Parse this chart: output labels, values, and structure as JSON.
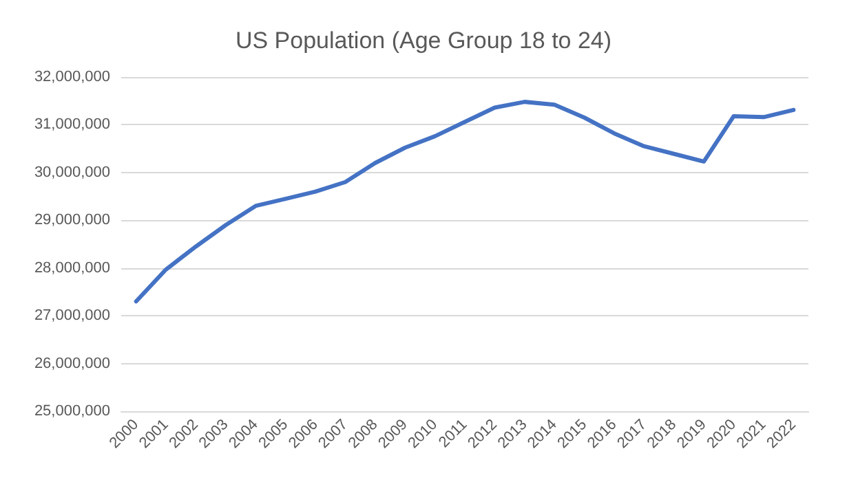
{
  "chart_data": {
    "type": "line",
    "title": "US Population (Age Group 18 to 24)",
    "categories": [
      "2000",
      "2001",
      "2002",
      "2003",
      "2004",
      "2005",
      "2006",
      "2007",
      "2008",
      "2009",
      "2010",
      "2011",
      "2012",
      "2013",
      "2014",
      "2015",
      "2016",
      "2017",
      "2018",
      "2019",
      "2020",
      "2021",
      "2022"
    ],
    "series": [
      {
        "color": "#4472c4",
        "values": [
          27300000,
          27970000,
          28450000,
          28900000,
          29300000,
          29450000,
          29600000,
          29800000,
          30200000,
          30520000,
          30760000,
          31060000,
          31360000,
          31480000,
          31420000,
          31150000,
          30820000,
          30550000,
          30390000,
          30230000,
          31180000,
          31160000,
          31310000
        ]
      }
    ],
    "ylim": [
      25000000,
      32000000
    ],
    "yticks": [
      {
        "value": 25000000,
        "label": "25,000,000"
      },
      {
        "value": 26000000,
        "label": "26,000,000"
      },
      {
        "value": 27000000,
        "label": "27,000,000"
      },
      {
        "value": 28000000,
        "label": "28,000,000"
      },
      {
        "value": 29000000,
        "label": "29,000,000"
      },
      {
        "value": 30000000,
        "label": "30,000,000"
      },
      {
        "value": 31000000,
        "label": "31,000,000"
      },
      {
        "value": 32000000,
        "label": "32,000,000"
      }
    ],
    "grid": "y",
    "marker": "none",
    "line_style": "solid"
  }
}
